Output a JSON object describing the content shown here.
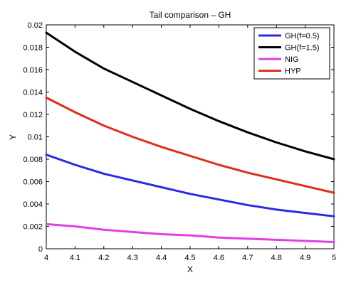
{
  "chart_data": {
    "type": "line",
    "title": "Tail comparison – GH",
    "xlabel": "X",
    "ylabel": "Y",
    "xlim": [
      4,
      5
    ],
    "ylim": [
      0,
      0.02
    ],
    "x_ticks": [
      4,
      4.1,
      4.2,
      4.3,
      4.4,
      4.5,
      4.6,
      4.7,
      4.8,
      4.9,
      5
    ],
    "x_tick_labels": [
      "4",
      "4.1",
      "4.2",
      "4.3",
      "4.4",
      "4.5",
      "4.6",
      "4.7",
      "4.8",
      "4.9",
      "5"
    ],
    "y_ticks": [
      0,
      0.002,
      0.004,
      0.006,
      0.008,
      0.01,
      0.012,
      0.014,
      0.016,
      0.018,
      0.02
    ],
    "y_tick_labels": [
      "0",
      "0.002",
      "0.004",
      "0.006",
      "0.008",
      "0.01",
      "0.012",
      "0.014",
      "0.016",
      "0.018",
      "0.02"
    ],
    "grid": false,
    "legend_position": "top-right",
    "x": [
      4,
      4.1,
      4.2,
      4.3,
      4.4,
      4.5,
      4.6,
      4.7,
      4.8,
      4.9,
      5
    ],
    "series": [
      {
        "name": "GH(f=0.5)",
        "color": "#2a2ae6",
        "values": [
          0.0084,
          0.0075,
          0.0067,
          0.0061,
          0.0055,
          0.0049,
          0.0044,
          0.0039,
          0.0035,
          0.0032,
          0.0029
        ]
      },
      {
        "name": "GH(f=1.5)",
        "color": "#000000",
        "values": [
          0.0193,
          0.0176,
          0.0161,
          0.0149,
          0.0137,
          0.0125,
          0.0114,
          0.0104,
          0.0095,
          0.0087,
          0.008
        ]
      },
      {
        "name": "NIG",
        "color": "#e040e6",
        "values": [
          0.0022,
          0.002,
          0.0017,
          0.0015,
          0.0013,
          0.0012,
          0.001,
          0.0009,
          0.0008,
          0.0007,
          0.0006
        ]
      },
      {
        "name": "HYP",
        "color": "#dd2f1a",
        "values": [
          0.0135,
          0.0122,
          0.011,
          0.01,
          0.0091,
          0.0083,
          0.0075,
          0.0068,
          0.0062,
          0.0056,
          0.005
        ]
      }
    ]
  }
}
